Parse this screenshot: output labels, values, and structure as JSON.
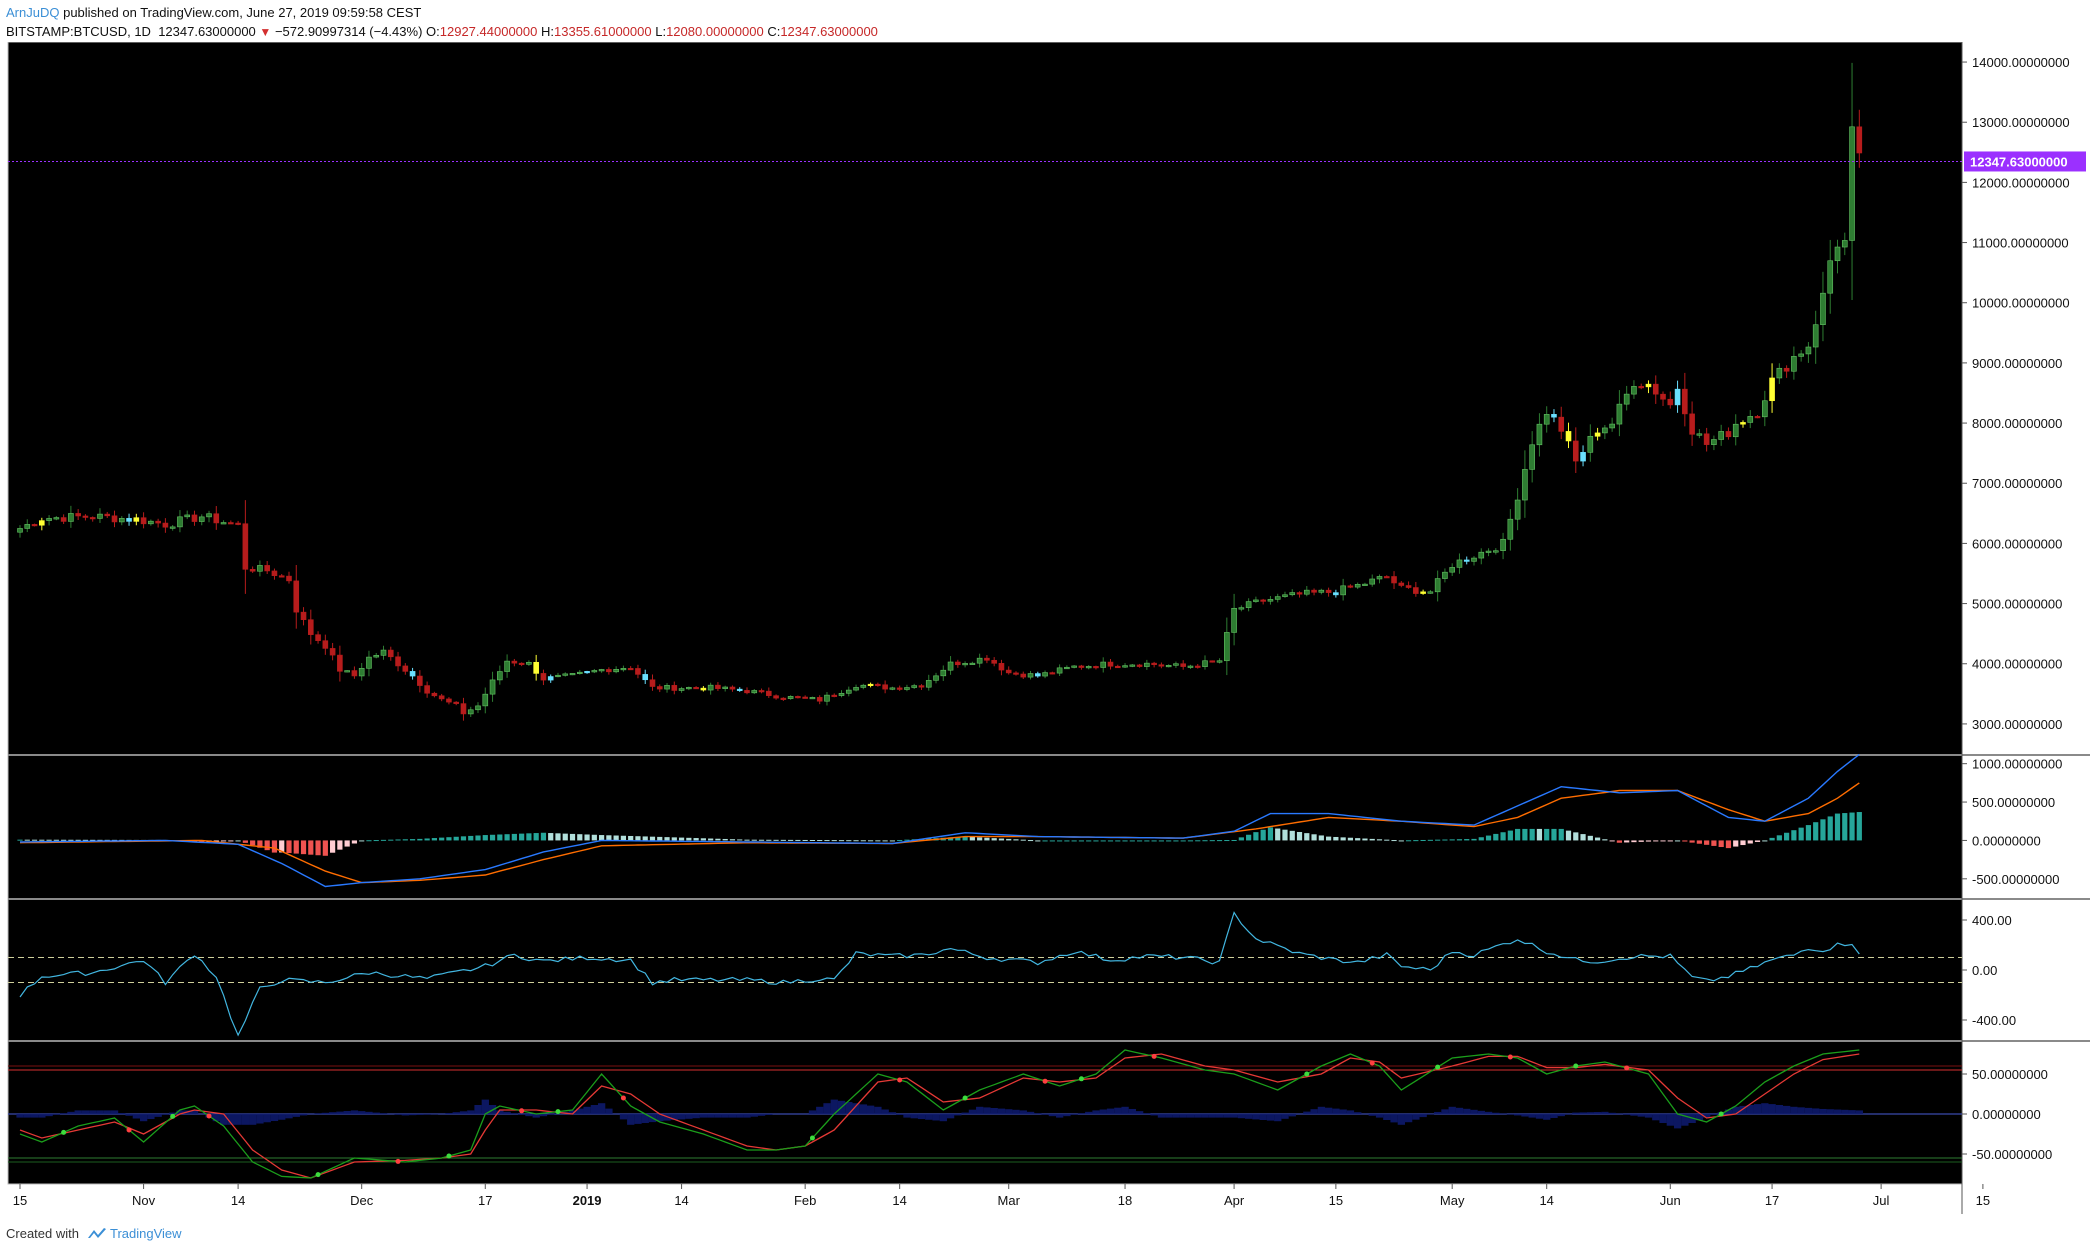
{
  "header": {
    "author": "ArnJuDQ",
    "published": "published on TradingView.com, June 27, 2019 09:59:58 CEST",
    "symbol": "BITSTAMP:BTCUSD, 1D",
    "last": "12347.63000000",
    "change_arrow": "▼",
    "change": "−572.90997314 (−4.43%)",
    "open_label": "O:",
    "open": "12927.44000000",
    "high_label": "H:",
    "high": "13355.61000000",
    "low_label": "L:",
    "low": "12080.00000000",
    "close_label": "C:",
    "close": "12347.63000000"
  },
  "footer": {
    "created_with": "Created with",
    "brand": "TradingView",
    "logo_icon": "tradingview-logo-icon"
  },
  "colors": {
    "background": "#000000",
    "up": "#2e7d32",
    "down": "#b71c1c",
    "highlight_yellow": "#ffff33",
    "highlight_cyan": "#6ae0ff",
    "last_price": "#9b30ff",
    "macd": "#2979ff",
    "signal": "#ff6d00",
    "cci": "#42b6e0",
    "stoch_k": "#1b9e1b",
    "stoch_d": "#e53935"
  },
  "chart_data": {
    "type": "candlestick",
    "symbol": "BITSTAMP:BTCUSD",
    "interval": "1D",
    "last_price_label": "12347.63000000",
    "price_axis": {
      "ylim": [
        2500,
        14300
      ],
      "ticks": [
        "14000.00000000",
        "13000.00000000",
        "12000.00000000",
        "11000.00000000",
        "10000.00000000",
        "9000.00000000",
        "8000.00000000",
        "7000.00000000",
        "6000.00000000",
        "5000.00000000",
        "4000.00000000",
        "3000.00000000"
      ]
    },
    "time_axis": {
      "labels": [
        "15",
        "Nov",
        "14",
        "Dec",
        "17",
        "2019",
        "14",
        "Feb",
        "14",
        "Mar",
        "18",
        "Apr",
        "15",
        "May",
        "14",
        "Jun",
        "17",
        "Jul",
        "15"
      ],
      "label_days": [
        0,
        17,
        30,
        47,
        64,
        78,
        91,
        108,
        121,
        136,
        152,
        167,
        181,
        197,
        210,
        227,
        241,
        256,
        270
      ]
    },
    "price_anchors_day_close": [
      [
        0,
        6250
      ],
      [
        3,
        6420
      ],
      [
        10,
        6450
      ],
      [
        16,
        6400
      ],
      [
        20,
        6320
      ],
      [
        25,
        6450
      ],
      [
        30,
        6300
      ],
      [
        31,
        5600
      ],
      [
        34,
        5550
      ],
      [
        37,
        5400
      ],
      [
        38,
        4900
      ],
      [
        40,
        4500
      ],
      [
        42,
        4300
      ],
      [
        44,
        3900
      ],
      [
        46,
        3800
      ],
      [
        48,
        4100
      ],
      [
        50,
        4200
      ],
      [
        52,
        4000
      ],
      [
        54,
        3800
      ],
      [
        56,
        3550
      ],
      [
        58,
        3400
      ],
      [
        60,
        3300
      ],
      [
        61,
        3180
      ],
      [
        63,
        3300
      ],
      [
        65,
        3700
      ],
      [
        67,
        4050
      ],
      [
        70,
        4000
      ],
      [
        72,
        3750
      ],
      [
        76,
        3800
      ],
      [
        80,
        3900
      ],
      [
        84,
        3950
      ],
      [
        87,
        3600
      ],
      [
        90,
        3600
      ],
      [
        95,
        3600
      ],
      [
        100,
        3550
      ],
      [
        105,
        3450
      ],
      [
        110,
        3400
      ],
      [
        115,
        3650
      ],
      [
        120,
        3600
      ],
      [
        124,
        3650
      ],
      [
        128,
        4000
      ],
      [
        133,
        4100
      ],
      [
        136,
        3850
      ],
      [
        140,
        3800
      ],
      [
        145,
        3950
      ],
      [
        150,
        4000
      ],
      [
        155,
        4000
      ],
      [
        160,
        3950
      ],
      [
        165,
        4050
      ],
      [
        167,
        4900
      ],
      [
        171,
        5050
      ],
      [
        176,
        5150
      ],
      [
        181,
        5200
      ],
      [
        184,
        5300
      ],
      [
        188,
        5450
      ],
      [
        190,
        5250
      ],
      [
        194,
        5200
      ],
      [
        197,
        5650
      ],
      [
        200,
        5800
      ],
      [
        204,
        6000
      ],
      [
        206,
        6800
      ],
      [
        208,
        7700
      ],
      [
        210,
        8200
      ],
      [
        212,
        7900
      ],
      [
        214,
        7350
      ],
      [
        217,
        7900
      ],
      [
        219,
        8000
      ],
      [
        222,
        8700
      ],
      [
        224,
        8650
      ],
      [
        227,
        8300
      ],
      [
        228,
        8600
      ],
      [
        230,
        7900
      ],
      [
        232,
        7650
      ],
      [
        235,
        7850
      ],
      [
        236,
        8000
      ],
      [
        239,
        8200
      ],
      [
        241,
        8700
      ],
      [
        244,
        9100
      ],
      [
        246,
        9300
      ],
      [
        248,
        10100
      ],
      [
        249,
        10700
      ],
      [
        250,
        11000
      ],
      [
        251,
        11000
      ],
      [
        252,
        12800
      ],
      [
        253,
        12350
      ]
    ],
    "macd": {
      "ylim": [
        -750,
        1100
      ],
      "ticks": [
        "1000.00000000",
        "500.00000000",
        "0.00000000",
        "-500.00000000"
      ],
      "macd_anchors": [
        [
          0,
          -20
        ],
        [
          20,
          0
        ],
        [
          30,
          -50
        ],
        [
          36,
          -300
        ],
        [
          42,
          -600
        ],
        [
          47,
          -550
        ],
        [
          55,
          -500
        ],
        [
          64,
          -380
        ],
        [
          72,
          -150
        ],
        [
          80,
          0
        ],
        [
          100,
          -20
        ],
        [
          120,
          -40
        ],
        [
          130,
          100
        ],
        [
          140,
          50
        ],
        [
          160,
          30
        ],
        [
          167,
          120
        ],
        [
          172,
          350
        ],
        [
          180,
          350
        ],
        [
          190,
          250
        ],
        [
          200,
          200
        ],
        [
          206,
          450
        ],
        [
          212,
          700
        ],
        [
          220,
          620
        ],
        [
          228,
          650
        ],
        [
          235,
          300
        ],
        [
          240,
          250
        ],
        [
          246,
          550
        ],
        [
          250,
          900
        ],
        [
          253,
          1120
        ]
      ],
      "signal_anchors": [
        [
          0,
          -30
        ],
        [
          25,
          0
        ],
        [
          35,
          -100
        ],
        [
          42,
          -400
        ],
        [
          47,
          -550
        ],
        [
          55,
          -520
        ],
        [
          64,
          -450
        ],
        [
          72,
          -250
        ],
        [
          80,
          -70
        ],
        [
          100,
          -30
        ],
        [
          120,
          -40
        ],
        [
          130,
          50
        ],
        [
          140,
          50
        ],
        [
          160,
          30
        ],
        [
          170,
          150
        ],
        [
          180,
          300
        ],
        [
          190,
          250
        ],
        [
          200,
          180
        ],
        [
          206,
          300
        ],
        [
          212,
          550
        ],
        [
          220,
          650
        ],
        [
          228,
          650
        ],
        [
          235,
          400
        ],
        [
          240,
          250
        ],
        [
          246,
          350
        ],
        [
          250,
          550
        ],
        [
          253,
          750
        ]
      ]
    },
    "cci": {
      "ylim": [
        -560,
        560
      ],
      "ticks": [
        "400.00",
        "0.00",
        "-400.00"
      ],
      "overbought": 100,
      "oversold": -100,
      "anchors": [
        [
          0,
          -200
        ],
        [
          3,
          -50
        ],
        [
          10,
          -20
        ],
        [
          17,
          80
        ],
        [
          20,
          -100
        ],
        [
          24,
          130
        ],
        [
          27,
          -50
        ],
        [
          30,
          -530
        ],
        [
          33,
          -150
        ],
        [
          36,
          -80
        ],
        [
          42,
          -100
        ],
        [
          48,
          -20
        ],
        [
          56,
          -70
        ],
        [
          64,
          30
        ],
        [
          68,
          120
        ],
        [
          72,
          70
        ],
        [
          78,
          100
        ],
        [
          84,
          80
        ],
        [
          87,
          -100
        ],
        [
          90,
          -80
        ],
        [
          100,
          -80
        ],
        [
          105,
          -100
        ],
        [
          110,
          -70
        ],
        [
          112,
          -80
        ],
        [
          115,
          130
        ],
        [
          120,
          110
        ],
        [
          124,
          120
        ],
        [
          128,
          170
        ],
        [
          133,
          100
        ],
        [
          140,
          60
        ],
        [
          145,
          150
        ],
        [
          150,
          80
        ],
        [
          155,
          110
        ],
        [
          160,
          100
        ],
        [
          165,
          60
        ],
        [
          167,
          450
        ],
        [
          170,
          250
        ],
        [
          176,
          130
        ],
        [
          181,
          80
        ],
        [
          184,
          60
        ],
        [
          188,
          120
        ],
        [
          190,
          30
        ],
        [
          194,
          0
        ],
        [
          197,
          150
        ],
        [
          200,
          120
        ],
        [
          206,
          250
        ],
        [
          210,
          150
        ],
        [
          214,
          80
        ],
        [
          217,
          70
        ],
        [
          222,
          110
        ],
        [
          227,
          110
        ],
        [
          230,
          -60
        ],
        [
          232,
          -90
        ],
        [
          235,
          -50
        ],
        [
          238,
          10
        ],
        [
          241,
          80
        ],
        [
          244,
          120
        ],
        [
          246,
          180
        ],
        [
          248,
          160
        ],
        [
          250,
          200
        ],
        [
          252,
          220
        ],
        [
          253,
          140
        ]
      ]
    },
    "stoch_rsi": {
      "ylim": [
        -85,
        90
      ],
      "ticks": [
        "50.00000000",
        "0.00000000",
        "-50.00000000"
      ],
      "upper_band": 55,
      "lower_band": -55,
      "k_anchors": [
        [
          0,
          -25
        ],
        [
          3,
          -35
        ],
        [
          8,
          -15
        ],
        [
          13,
          -5
        ],
        [
          17,
          -35
        ],
        [
          22,
          5
        ],
        [
          24,
          10
        ],
        [
          28,
          -15
        ],
        [
          32,
          -60
        ],
        [
          36,
          -78
        ],
        [
          40,
          -80
        ],
        [
          46,
          -55
        ],
        [
          53,
          -60
        ],
        [
          58,
          -55
        ],
        [
          62,
          -45
        ],
        [
          64,
          0
        ],
        [
          66,
          10
        ],
        [
          71,
          0
        ],
        [
          76,
          5
        ],
        [
          80,
          50
        ],
        [
          84,
          10
        ],
        [
          88,
          -10
        ],
        [
          94,
          -25
        ],
        [
          100,
          -45
        ],
        [
          104,
          -45
        ],
        [
          108,
          -40
        ],
        [
          112,
          0
        ],
        [
          118,
          50
        ],
        [
          122,
          40
        ],
        [
          127,
          5
        ],
        [
          132,
          30
        ],
        [
          138,
          50
        ],
        [
          143,
          35
        ],
        [
          148,
          50
        ],
        [
          152,
          80
        ],
        [
          157,
          70
        ],
        [
          163,
          55
        ],
        [
          167,
          50
        ],
        [
          173,
          30
        ],
        [
          179,
          60
        ],
        [
          183,
          75
        ],
        [
          187,
          60
        ],
        [
          190,
          30
        ],
        [
          197,
          70
        ],
        [
          202,
          75
        ],
        [
          206,
          70
        ],
        [
          210,
          50
        ],
        [
          214,
          60
        ],
        [
          218,
          65
        ],
        [
          224,
          50
        ],
        [
          228,
          0
        ],
        [
          232,
          -10
        ],
        [
          236,
          10
        ],
        [
          240,
          40
        ],
        [
          244,
          60
        ],
        [
          248,
          75
        ],
        [
          253,
          80
        ]
      ],
      "d_anchors": [
        [
          0,
          -20
        ],
        [
          3,
          -30
        ],
        [
          8,
          -20
        ],
        [
          13,
          -10
        ],
        [
          17,
          -25
        ],
        [
          22,
          0
        ],
        [
          24,
          5
        ],
        [
          28,
          0
        ],
        [
          32,
          -45
        ],
        [
          36,
          -70
        ],
        [
          40,
          -80
        ],
        [
          46,
          -60
        ],
        [
          53,
          -58
        ],
        [
          58,
          -55
        ],
        [
          62,
          -50
        ],
        [
          64,
          -20
        ],
        [
          66,
          5
        ],
        [
          71,
          5
        ],
        [
          76,
          0
        ],
        [
          80,
          35
        ],
        [
          84,
          25
        ],
        [
          88,
          0
        ],
        [
          94,
          -20
        ],
        [
          100,
          -40
        ],
        [
          104,
          -45
        ],
        [
          108,
          -40
        ],
        [
          112,
          -20
        ],
        [
          118,
          40
        ],
        [
          122,
          45
        ],
        [
          127,
          15
        ],
        [
          132,
          20
        ],
        [
          138,
          45
        ],
        [
          143,
          40
        ],
        [
          148,
          45
        ],
        [
          152,
          70
        ],
        [
          157,
          75
        ],
        [
          163,
          60
        ],
        [
          167,
          55
        ],
        [
          173,
          40
        ],
        [
          179,
          50
        ],
        [
          183,
          70
        ],
        [
          187,
          65
        ],
        [
          190,
          45
        ],
        [
          197,
          60
        ],
        [
          202,
          72
        ],
        [
          206,
          72
        ],
        [
          210,
          58
        ],
        [
          214,
          58
        ],
        [
          218,
          62
        ],
        [
          224,
          55
        ],
        [
          228,
          20
        ],
        [
          232,
          -5
        ],
        [
          236,
          0
        ],
        [
          240,
          25
        ],
        [
          244,
          50
        ],
        [
          248,
          68
        ],
        [
          253,
          75
        ]
      ]
    }
  }
}
